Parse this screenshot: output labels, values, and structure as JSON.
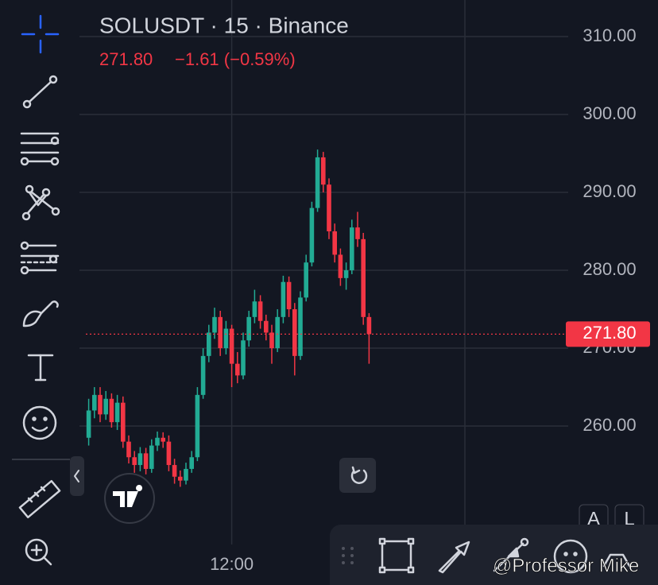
{
  "header": {
    "symbol": "SOLUSDT · 15 · Binance",
    "last": "271.80",
    "change": "−1.61 (−0.59%)"
  },
  "chart_data": {
    "type": "candlestick",
    "categories": [
      null,
      null,
      null,
      null,
      null,
      null,
      null,
      null,
      null,
      null,
      null,
      null,
      null,
      null,
      null,
      null,
      null,
      null,
      null,
      null,
      null,
      null,
      null,
      null,
      null,
      "12:00",
      null,
      null,
      null,
      null,
      null,
      null,
      null,
      null,
      null,
      null,
      null,
      null,
      null,
      null,
      null,
      null,
      null,
      null,
      null,
      null,
      null,
      null,
      null,
      null
    ],
    "open": [
      258.5,
      262,
      264,
      261.5,
      263.5,
      260.5,
      263,
      258,
      256,
      255,
      256.5,
      254.5,
      257.5,
      258.5,
      258,
      255,
      253.5,
      253,
      254.5,
      256,
      264,
      269,
      272,
      274,
      270,
      272.5,
      268,
      266.5,
      271,
      274,
      276,
      273.5,
      272,
      270,
      274,
      278.5,
      275,
      269,
      276.5,
      281,
      288,
      294.5,
      291,
      285,
      282,
      279,
      280,
      285.5,
      284,
      274
    ],
    "high": [
      263.5,
      265,
      265,
      264.5,
      264.2,
      264,
      263.8,
      258.8,
      256.8,
      257.3,
      257.2,
      258.3,
      259.3,
      259.2,
      258.8,
      255.8,
      254.3,
      255.3,
      256.8,
      265,
      270,
      273,
      275.2,
      274.8,
      273.5,
      273,
      269.5,
      272,
      274.8,
      277.5,
      276.8,
      274.3,
      273,
      275,
      279.3,
      279.2,
      275.8,
      277.3,
      282,
      288.8,
      295.5,
      295.2,
      291.8,
      286,
      282.8,
      281,
      286.5,
      287.5,
      284.8,
      274.5
    ],
    "low": [
      257.5,
      261,
      260.5,
      260.8,
      259.8,
      259.5,
      257.2,
      255.2,
      254,
      254.2,
      253.8,
      254,
      256.8,
      257.2,
      254.2,
      252.6,
      252.2,
      252.5,
      254,
      255.5,
      263.5,
      268.2,
      271.2,
      269,
      269.2,
      265,
      265.5,
      266,
      270.2,
      273.2,
      272.5,
      271,
      268,
      269.5,
      273.2,
      274,
      266.5,
      268.5,
      276,
      280.5,
      287.5,
      290,
      284,
      281,
      278,
      277.5,
      279.5,
      283,
      273,
      268
    ],
    "close": [
      262,
      264,
      261.5,
      263.5,
      260.5,
      263,
      258,
      256,
      255,
      256.5,
      254.5,
      257.5,
      258.5,
      258,
      255,
      253.5,
      253,
      254.5,
      256,
      264,
      269,
      272,
      274,
      270,
      272.5,
      268,
      266.5,
      271,
      274,
      276,
      273.5,
      272,
      270,
      274,
      278.5,
      275,
      269,
      276.5,
      281,
      288,
      294.5,
      291,
      285,
      282,
      279,
      280,
      285.5,
      284,
      274,
      271.8
    ],
    "up_color": "#22ab94",
    "down_color": "#f23645",
    "ylim": [
      244.8,
      314.7
    ],
    "yticks": [
      {
        "value": 260,
        "label": "260.00"
      },
      {
        "value": 270,
        "label": "270.00"
      },
      {
        "value": 280,
        "label": "280.00"
      },
      {
        "value": 290,
        "label": "290.00"
      },
      {
        "value": 300,
        "label": "300.00"
      },
      {
        "value": 310,
        "label": "310.00"
      }
    ],
    "last_price": {
      "value": 271.8,
      "label": "271.80"
    },
    "grid": true
  },
  "buttons": {
    "auto": "A",
    "log": "L"
  },
  "watermark": "@Professor Mike"
}
